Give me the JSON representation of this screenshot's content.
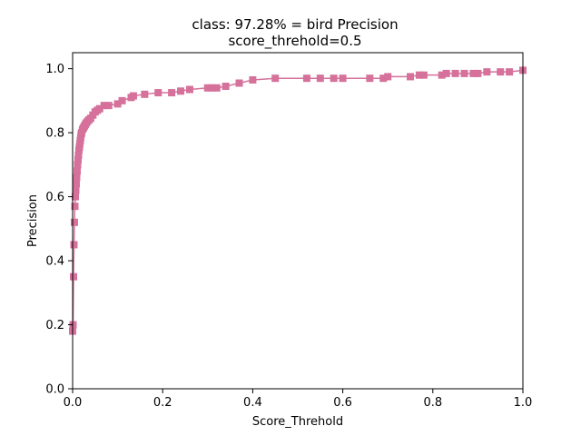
{
  "chart_data": {
    "type": "line",
    "title": "class: 97.28% = bird Precision",
    "subtitle": "score_threhold=0.5",
    "xlabel": "Score_Threhold",
    "ylabel": "Precision",
    "xlim": [
      0.0,
      1.0
    ],
    "ylim": [
      0.0,
      1.05
    ],
    "x_ticks": [
      "0.0",
      "0.2",
      "0.4",
      "0.6",
      "0.8",
      "1.0"
    ],
    "y_ticks": [
      "0.0",
      "0.2",
      "0.4",
      "0.6",
      "0.8",
      "1.0"
    ],
    "grid": false,
    "series_color": "#d5719a",
    "marker": "square",
    "series": [
      {
        "x": [
          0.0,
          0.001,
          0.002,
          0.003,
          0.004,
          0.005,
          0.006,
          0.007,
          0.008,
          0.009,
          0.01,
          0.011,
          0.012,
          0.013,
          0.014,
          0.015,
          0.016,
          0.017,
          0.018,
          0.019,
          0.02,
          0.022,
          0.024,
          0.026,
          0.028,
          0.03,
          0.033,
          0.036,
          0.04,
          0.045,
          0.05,
          0.055,
          0.06,
          0.07,
          0.08,
          0.1,
          0.11,
          0.13,
          0.135,
          0.16,
          0.19,
          0.22,
          0.24,
          0.26,
          0.3,
          0.31,
          0.32,
          0.34,
          0.37,
          0.4,
          0.45,
          0.52,
          0.55,
          0.58,
          0.6,
          0.66,
          0.69,
          0.7,
          0.75,
          0.77,
          0.78,
          0.82,
          0.83,
          0.85,
          0.87,
          0.89,
          0.9,
          0.92,
          0.95,
          0.97,
          1.0
        ],
        "y": [
          0.18,
          0.2,
          0.35,
          0.45,
          0.52,
          0.57,
          0.6,
          0.62,
          0.64,
          0.66,
          0.68,
          0.7,
          0.715,
          0.73,
          0.745,
          0.755,
          0.765,
          0.775,
          0.785,
          0.795,
          0.8,
          0.81,
          0.815,
          0.82,
          0.825,
          0.83,
          0.835,
          0.84,
          0.845,
          0.855,
          0.865,
          0.87,
          0.875,
          0.885,
          0.885,
          0.89,
          0.9,
          0.91,
          0.915,
          0.92,
          0.925,
          0.925,
          0.93,
          0.935,
          0.94,
          0.94,
          0.94,
          0.945,
          0.955,
          0.965,
          0.97,
          0.97,
          0.97,
          0.97,
          0.97,
          0.97,
          0.97,
          0.975,
          0.975,
          0.98,
          0.98,
          0.98,
          0.985,
          0.985,
          0.985,
          0.985,
          0.985,
          0.99,
          0.99,
          0.99,
          0.995
        ]
      }
    ]
  }
}
